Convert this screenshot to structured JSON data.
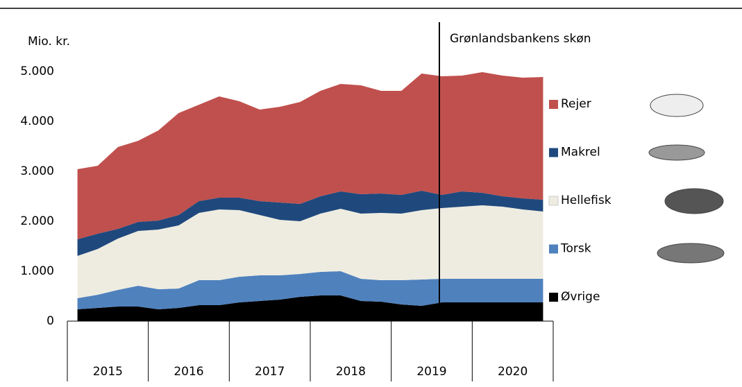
{
  "chart_data": {
    "type": "stacked_area",
    "y_label": "Mio. kr.",
    "annotation": "Grønlandsbankens skøn",
    "categories": [
      null,
      null,
      null,
      null,
      null,
      null,
      null,
      null,
      null,
      null,
      null,
      null,
      null,
      null,
      null,
      null,
      null,
      null,
      null,
      null,
      null,
      null,
      null,
      null
    ],
    "year_labels": [
      "2015",
      "2016",
      "2017",
      "2018",
      "2019",
      "2020"
    ],
    "ylim": [
      0,
      5000
    ],
    "yticks": [
      0,
      {
        "value": 1000,
        "label": "1.000"
      },
      {
        "value": 2000,
        "label": "2.000"
      },
      {
        "value": 3000,
        "label": "3.000"
      },
      {
        "value": 4000,
        "label": "4.000"
      },
      {
        "value": 5000,
        "label": "5.000"
      }
    ],
    "series": [
      {
        "name": "Øvrige",
        "color": "#000000",
        "values": [
          236,
          264,
          292,
          292,
          236,
          264,
          319,
          319,
          375,
          403,
          431,
          486,
          514,
          514,
          403,
          389,
          333,
          306,
          375,
          375,
          375,
          375,
          375,
          375
        ]
      },
      {
        "name": "Torsk",
        "color": "#4f81bd",
        "values": [
          222,
          264,
          333,
          416,
          403,
          389,
          500,
          500,
          514,
          514,
          486,
          458,
          472,
          486,
          444,
          430,
          486,
          527,
          472,
          472,
          472,
          472,
          472,
          472
        ]
      },
      {
        "name": "Hellefisk",
        "color": "#eeece1",
        "values": [
          848,
          916,
          1028,
          1098,
          1194,
          1264,
          1348,
          1417,
          1333,
          1208,
          1111,
          1056,
          1167,
          1250,
          1306,
          1348,
          1334,
          1389,
          1417,
          1445,
          1472,
          1445,
          1389,
          1347
        ]
      },
      {
        "name": "Makrel",
        "color": "#1f497d",
        "values": [
          333,
          306,
          194,
          180,
          181,
          208,
          236,
          236,
          250,
          278,
          347,
          347,
          347,
          347,
          389,
          389,
          375,
          389,
          264,
          305,
          250,
          208,
          222,
          237
        ]
      },
      {
        "name": "Rejer",
        "color": "#c0504d",
        "values": [
          1403,
          1361,
          1639,
          1625,
          1805,
          2042,
          1930,
          2028,
          1931,
          1833,
          1917,
          2042,
          2111,
          2153,
          2180,
          2055,
          2083,
          2347,
          2375,
          2320,
          2417,
          2417,
          2417,
          2458
        ]
      }
    ]
  }
}
